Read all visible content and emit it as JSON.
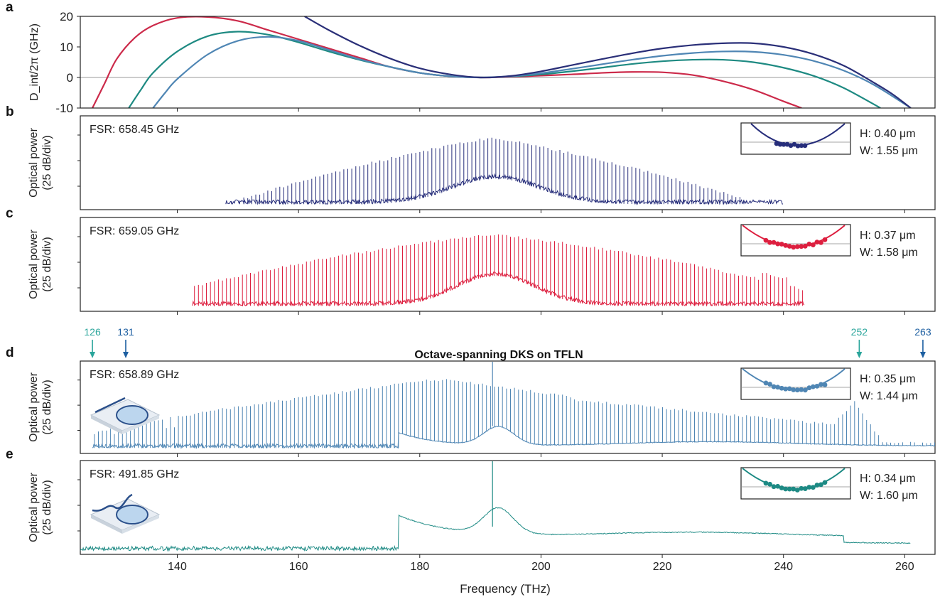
{
  "figure": {
    "xlabel": "Frequency (THz)",
    "xlim": [
      124,
      265
    ],
    "xticks": [
      140,
      160,
      180,
      200,
      220,
      240,
      260
    ],
    "xtick_labels": [
      "140",
      "160",
      "180",
      "200",
      "220",
      "240",
      "260"
    ]
  },
  "chart_data": [
    {
      "panel": "a",
      "type": "line",
      "ylabel": "D_int/2π (GHz)",
      "ylim": [
        -10,
        20
      ],
      "yticks": [
        -10,
        0,
        10,
        20
      ],
      "ytick_labels": [
        "-10",
        "0",
        "10",
        "20"
      ],
      "zero_line": true,
      "series": [
        {
          "color": "#cc2a4a",
          "x": [
            126,
            128,
            130,
            133,
            136,
            140,
            145,
            150,
            155,
            160,
            165,
            170,
            175,
            180,
            185,
            190,
            195,
            200,
            205,
            210,
            215,
            220,
            225,
            230,
            235,
            240,
            243
          ],
          "y": [
            -10,
            -2,
            6,
            13,
            17,
            19.5,
            19.8,
            18.5,
            15.5,
            12.5,
            9.5,
            6.5,
            3.5,
            1.5,
            0.4,
            0,
            0.2,
            0.6,
            1.0,
            1.5,
            1.8,
            1.7,
            0.8,
            -1.2,
            -4.0,
            -7.8,
            -10
          ]
        },
        {
          "color": "#1e8a82",
          "x": [
            132,
            134,
            136,
            140,
            145,
            150,
            155,
            160,
            165,
            170,
            175,
            180,
            185,
            190,
            195,
            200,
            205,
            210,
            215,
            220,
            225,
            230,
            235,
            240,
            245,
            250,
            256
          ],
          "y": [
            -10,
            -4,
            1.5,
            8.5,
            13.5,
            15,
            14,
            11.5,
            8.5,
            5.8,
            3.5,
            1.5,
            0.4,
            0,
            0.3,
            1.0,
            2.0,
            3.2,
            4.4,
            5.3,
            5.8,
            5.8,
            5.0,
            3.2,
            0.5,
            -3.5,
            -10
          ]
        },
        {
          "color": "#4f86b4",
          "x": [
            136,
            138,
            140,
            145,
            150,
            155,
            160,
            165,
            170,
            175,
            180,
            185,
            190,
            195,
            200,
            205,
            210,
            215,
            220,
            225,
            230,
            235,
            240,
            245,
            250,
            255,
            261
          ],
          "y": [
            -10,
            -5,
            -0.5,
            7.5,
            12,
            13.3,
            12,
            9,
            6,
            3.5,
            1.5,
            0.4,
            0,
            0.4,
            1.4,
            2.8,
            4.3,
            5.8,
            7.1,
            8.0,
            8.5,
            8.4,
            7.4,
            5.4,
            2.2,
            -2.5,
            -10
          ]
        },
        {
          "color": "#2a2f78",
          "x": [
            161,
            165,
            170,
            175,
            180,
            185,
            190,
            195,
            200,
            205,
            210,
            215,
            220,
            225,
            230,
            235,
            240,
            245,
            250,
            255,
            258,
            261
          ],
          "y": [
            20,
            15.5,
            10.5,
            6.3,
            3.0,
            1.0,
            0,
            0.5,
            2.0,
            4.0,
            6.0,
            7.9,
            9.5,
            10.6,
            11.2,
            11.2,
            10.0,
            7.6,
            3.8,
            -1.8,
            -5.5,
            -10
          ]
        }
      ]
    },
    {
      "panel": "b",
      "type": "line",
      "ylabel": "Optical power",
      "ylabel2": "(25 dB/div)",
      "fsr_label": "FSR: 658.45 GHz",
      "color": "#262d7a",
      "x_range": [
        148,
        240
      ],
      "fsr_thz": 0.6585,
      "center_thz": 192.5,
      "inset": {
        "h_label": "H: 0.40 μm",
        "w_label": "W: 1.55 μm"
      }
    },
    {
      "panel": "c",
      "type": "line",
      "ylabel": "Optical power",
      "ylabel2": "(25 dB/div)",
      "fsr_label": "FSR: 659.05 GHz",
      "color": "#dd1f3f",
      "x_range": [
        142.5,
        243.5
      ],
      "fsr_thz": 0.659,
      "center_thz": 192.5,
      "inset": {
        "h_label": "H: 0.37 μm",
        "w_label": "W: 1.58 μm"
      }
    },
    {
      "panel": "d",
      "type": "line",
      "ylabel": "Optical power",
      "ylabel2": "(25 dB/div)",
      "title": "Octave-spanning DKS on TFLN",
      "fsr_label": "FSR: 658.89 GHz",
      "color": "#4f86b4",
      "x_range": [
        126,
        265
      ],
      "fsr_thz": 0.6589,
      "center_thz": 192,
      "inset": {
        "h_label": "H: 0.35 μm",
        "w_label": "W: 1.44 μm"
      },
      "markers": [
        {
          "label": "126",
          "x": 126,
          "color": "#2aa59b"
        },
        {
          "label": "131",
          "x": 131.5,
          "color": "#1d5fa1"
        },
        {
          "label": "252",
          "x": 252.5,
          "color": "#2aa59b"
        },
        {
          "label": "263",
          "x": 263,
          "color": "#1d5fa1"
        }
      ]
    },
    {
      "panel": "e",
      "type": "line",
      "ylabel": "Optical power",
      "ylabel2": "(25 dB/div)",
      "fsr_label": "FSR: 491.85 GHz",
      "color": "#1d8a84",
      "x_range": [
        124,
        261
      ],
      "fsr_thz": 0.4919,
      "center_thz": 192,
      "inset": {
        "h_label": "H: 0.34 μm",
        "w_label": "W: 1.60 μm"
      }
    }
  ],
  "panel_letters": [
    "a",
    "b",
    "c",
    "d",
    "e"
  ],
  "colors": {
    "axis": "#222222",
    "zero_line": "#9a9a9a"
  }
}
